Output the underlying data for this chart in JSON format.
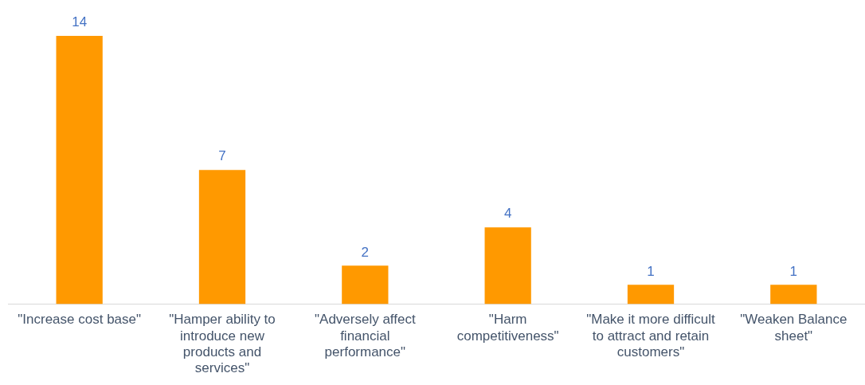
{
  "chart_data": {
    "type": "bar",
    "categories": [
      "\"Increase cost base\"",
      "\"Hamper ability to introduce new products and services\"",
      "\"Adversely affect financial performance\"",
      "\"Harm competitiveness\"",
      "\"Make it more difficult to attract and retain customers\"",
      "\"Weaken Balance sheet\""
    ],
    "values": [
      14,
      7,
      2,
      4,
      1,
      1
    ],
    "color": "#ff9900",
    "data_labels": true,
    "grid": false,
    "legend": false
  }
}
